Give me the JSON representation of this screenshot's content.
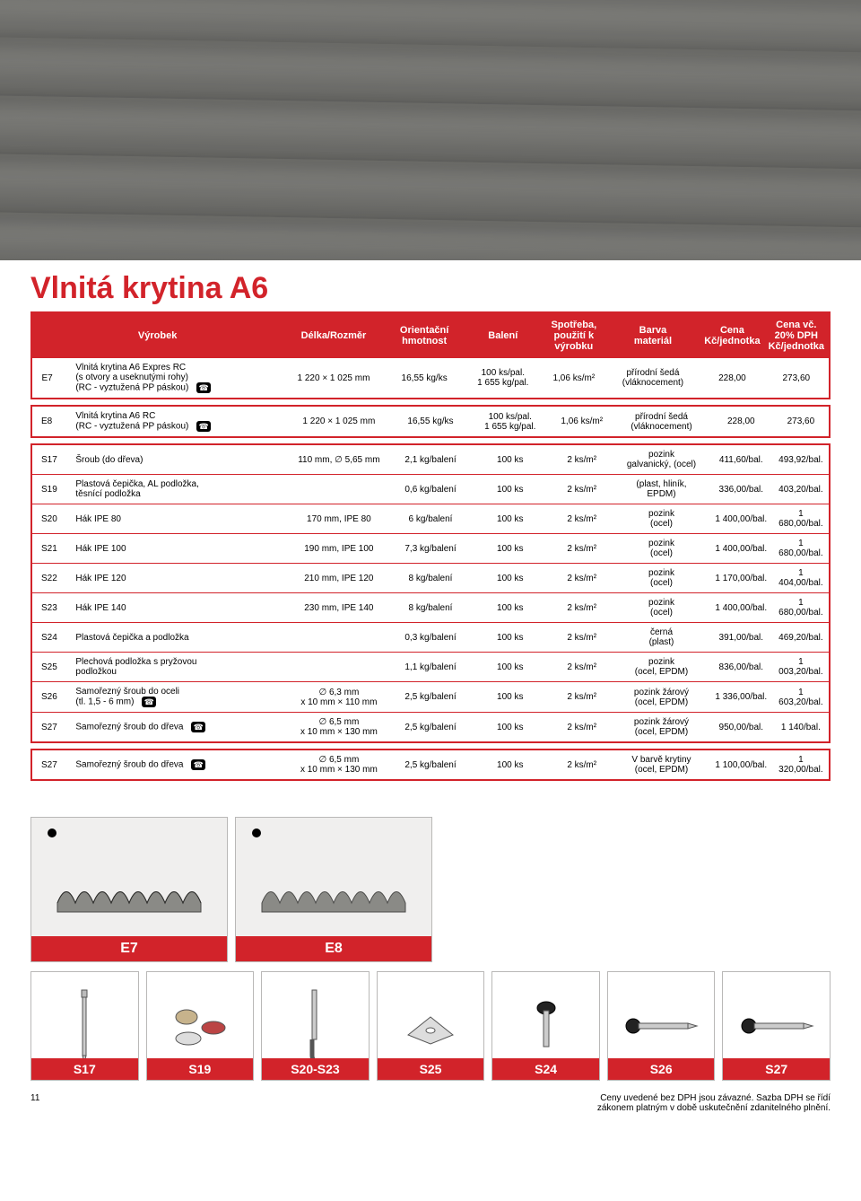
{
  "page_number": "11",
  "title": "Vlnitá krytina A6",
  "columns": [
    "Výrobek",
    "Délka/Rozměr",
    "Orientační\nhmotnost",
    "Balení",
    "Spotřeba,\npoužití k výrobku",
    "Barva\nmateriál",
    "Cena\nKč/jednotka",
    "Cena vč. 20% DPH\nKč/jednotka"
  ],
  "section1": {
    "rows": [
      {
        "code": "E7",
        "name": "Vlnitá krytina A6 Expres RC\n(s otvory a useknutými rohy)\n(RC - vyztužená PP páskou)",
        "phone": true,
        "dim": "1 220 × 1 025 mm",
        "weight": "16,55 kg/ks",
        "pack": "100 ks/pal.\n1 655 kg/pal.",
        "use": "1,06 ks/m²",
        "mat": "přírodní šedá\n(vláknocement)",
        "price": "228,00",
        "price_vat": "273,60"
      }
    ]
  },
  "section2": {
    "rows": [
      {
        "code": "E8",
        "name": "Vlnitá krytina A6 RC\n(RC - vyztužená PP páskou)",
        "phone": true,
        "dim": "1 220 × 1 025 mm",
        "weight": "16,55 kg/ks",
        "pack": "100 ks/pal.\n1 655 kg/pal.",
        "use": "1,06 ks/m²",
        "mat": "přírodní šedá\n(vláknocement)",
        "price": "228,00",
        "price_vat": "273,60"
      }
    ]
  },
  "section3": {
    "rows": [
      {
        "code": "S17",
        "name": "Šroub (do dřeva)",
        "phone": false,
        "dim": "110 mm, ∅ 5,65 mm",
        "weight": "2,1 kg/balení",
        "pack": "100 ks",
        "use": "2 ks/m²",
        "mat": "pozink\ngalvanický, (ocel)",
        "price": "411,60/bal.",
        "price_vat": "493,92/bal."
      },
      {
        "code": "S19",
        "name": "Plastová čepička, AL podložka,\ntěsnící podložka",
        "phone": false,
        "dim": "",
        "weight": "0,6 kg/balení",
        "pack": "100 ks",
        "use": "2 ks/m²",
        "mat": "(plast, hliník,\nEPDM)",
        "price": "336,00/bal.",
        "price_vat": "403,20/bal."
      },
      {
        "code": "S20",
        "name": "Hák IPE 80",
        "phone": false,
        "dim": "170 mm, IPE 80",
        "weight": "6 kg/balení",
        "pack": "100 ks",
        "use": "2 ks/m²",
        "mat": "pozink\n(ocel)",
        "price": "1 400,00/bal.",
        "price_vat": "1 680,00/bal."
      },
      {
        "code": "S21",
        "name": "Hák IPE 100",
        "phone": false,
        "dim": "190 mm, IPE 100",
        "weight": "7,3 kg/balení",
        "pack": "100 ks",
        "use": "2 ks/m²",
        "mat": "pozink\n(ocel)",
        "price": "1 400,00/bal.",
        "price_vat": "1 680,00/bal."
      },
      {
        "code": "S22",
        "name": "Hák IPE 120",
        "phone": false,
        "dim": "210 mm, IPE 120",
        "weight": "8 kg/balení",
        "pack": "100 ks",
        "use": "2 ks/m²",
        "mat": "pozink\n(ocel)",
        "price": "1 170,00/bal.",
        "price_vat": "1 404,00/bal."
      },
      {
        "code": "S23",
        "name": "Hák IPE 140",
        "phone": false,
        "dim": "230 mm, IPE 140",
        "weight": "8 kg/balení",
        "pack": "100 ks",
        "use": "2 ks/m²",
        "mat": "pozink\n(ocel)",
        "price": "1 400,00/bal.",
        "price_vat": "1 680,00/bal."
      },
      {
        "code": "S24",
        "name": "Plastová čepička a podložka",
        "phone": false,
        "dim": "",
        "weight": "0,3 kg/balení",
        "pack": "100 ks",
        "use": "2 ks/m²",
        "mat": "černá\n(plast)",
        "price": "391,00/bal.",
        "price_vat": "469,20/bal."
      },
      {
        "code": "S25",
        "name": "Plechová podložka s pryžovou\npodložkou",
        "phone": false,
        "dim": "",
        "weight": "1,1 kg/balení",
        "pack": "100 ks",
        "use": "2 ks/m²",
        "mat": "pozink\n(ocel, EPDM)",
        "price": "836,00/bal.",
        "price_vat": "1 003,20/bal."
      },
      {
        "code": "S26",
        "name": "Samořezný šroub do oceli\n(tl. 1,5 - 6 mm)",
        "phone": true,
        "dim": "∅ 6,3 mm\nx 10 mm × 110 mm",
        "weight": "2,5 kg/balení",
        "pack": "100 ks",
        "use": "2 ks/m²",
        "mat": "pozink žárový\n(ocel, EPDM)",
        "price": "1 336,00/bal.",
        "price_vat": "1 603,20/bal."
      },
      {
        "code": "S27",
        "name": "Samořezný šroub do dřeva",
        "phone": true,
        "dim": "∅ 6,5 mm\nx 10 mm × 130 mm",
        "weight": "2,5 kg/balení",
        "pack": "100 ks",
        "use": "2 ks/m²",
        "mat": "pozink žárový\n(ocel, EPDM)",
        "price": "950,00/bal.",
        "price_vat": "1 140/bal."
      }
    ]
  },
  "section4": {
    "rows": [
      {
        "code": "S27",
        "name": "Samořezný šroub do dřeva",
        "phone": true,
        "dim": "∅ 6,5 mm\nx 10 mm × 130 mm",
        "weight": "2,5 kg/balení",
        "pack": "100 ks",
        "use": "2 ks/m²",
        "mat": "V barvě krytiny\n(ocel, EPDM)",
        "price": "1 100,00/bal.",
        "price_vat": "1 320,00/bal."
      }
    ]
  },
  "tiles": [
    "E7",
    "E8"
  ],
  "bits": [
    "S17",
    "S19",
    "S20-S23",
    "S25",
    "S24",
    "S26",
    "S27"
  ],
  "footer_note": "Ceny uvedené bez DPH jsou závazné. Sazba DPH se řídí\nzákonem platným v době uskutečnění zdanitelného plnění.",
  "colors": {
    "brand_red": "#d2232a",
    "panel_bg": "#f0efee",
    "panel_border": "#b9b8b7",
    "hero_grey": "#6e6e6c"
  }
}
